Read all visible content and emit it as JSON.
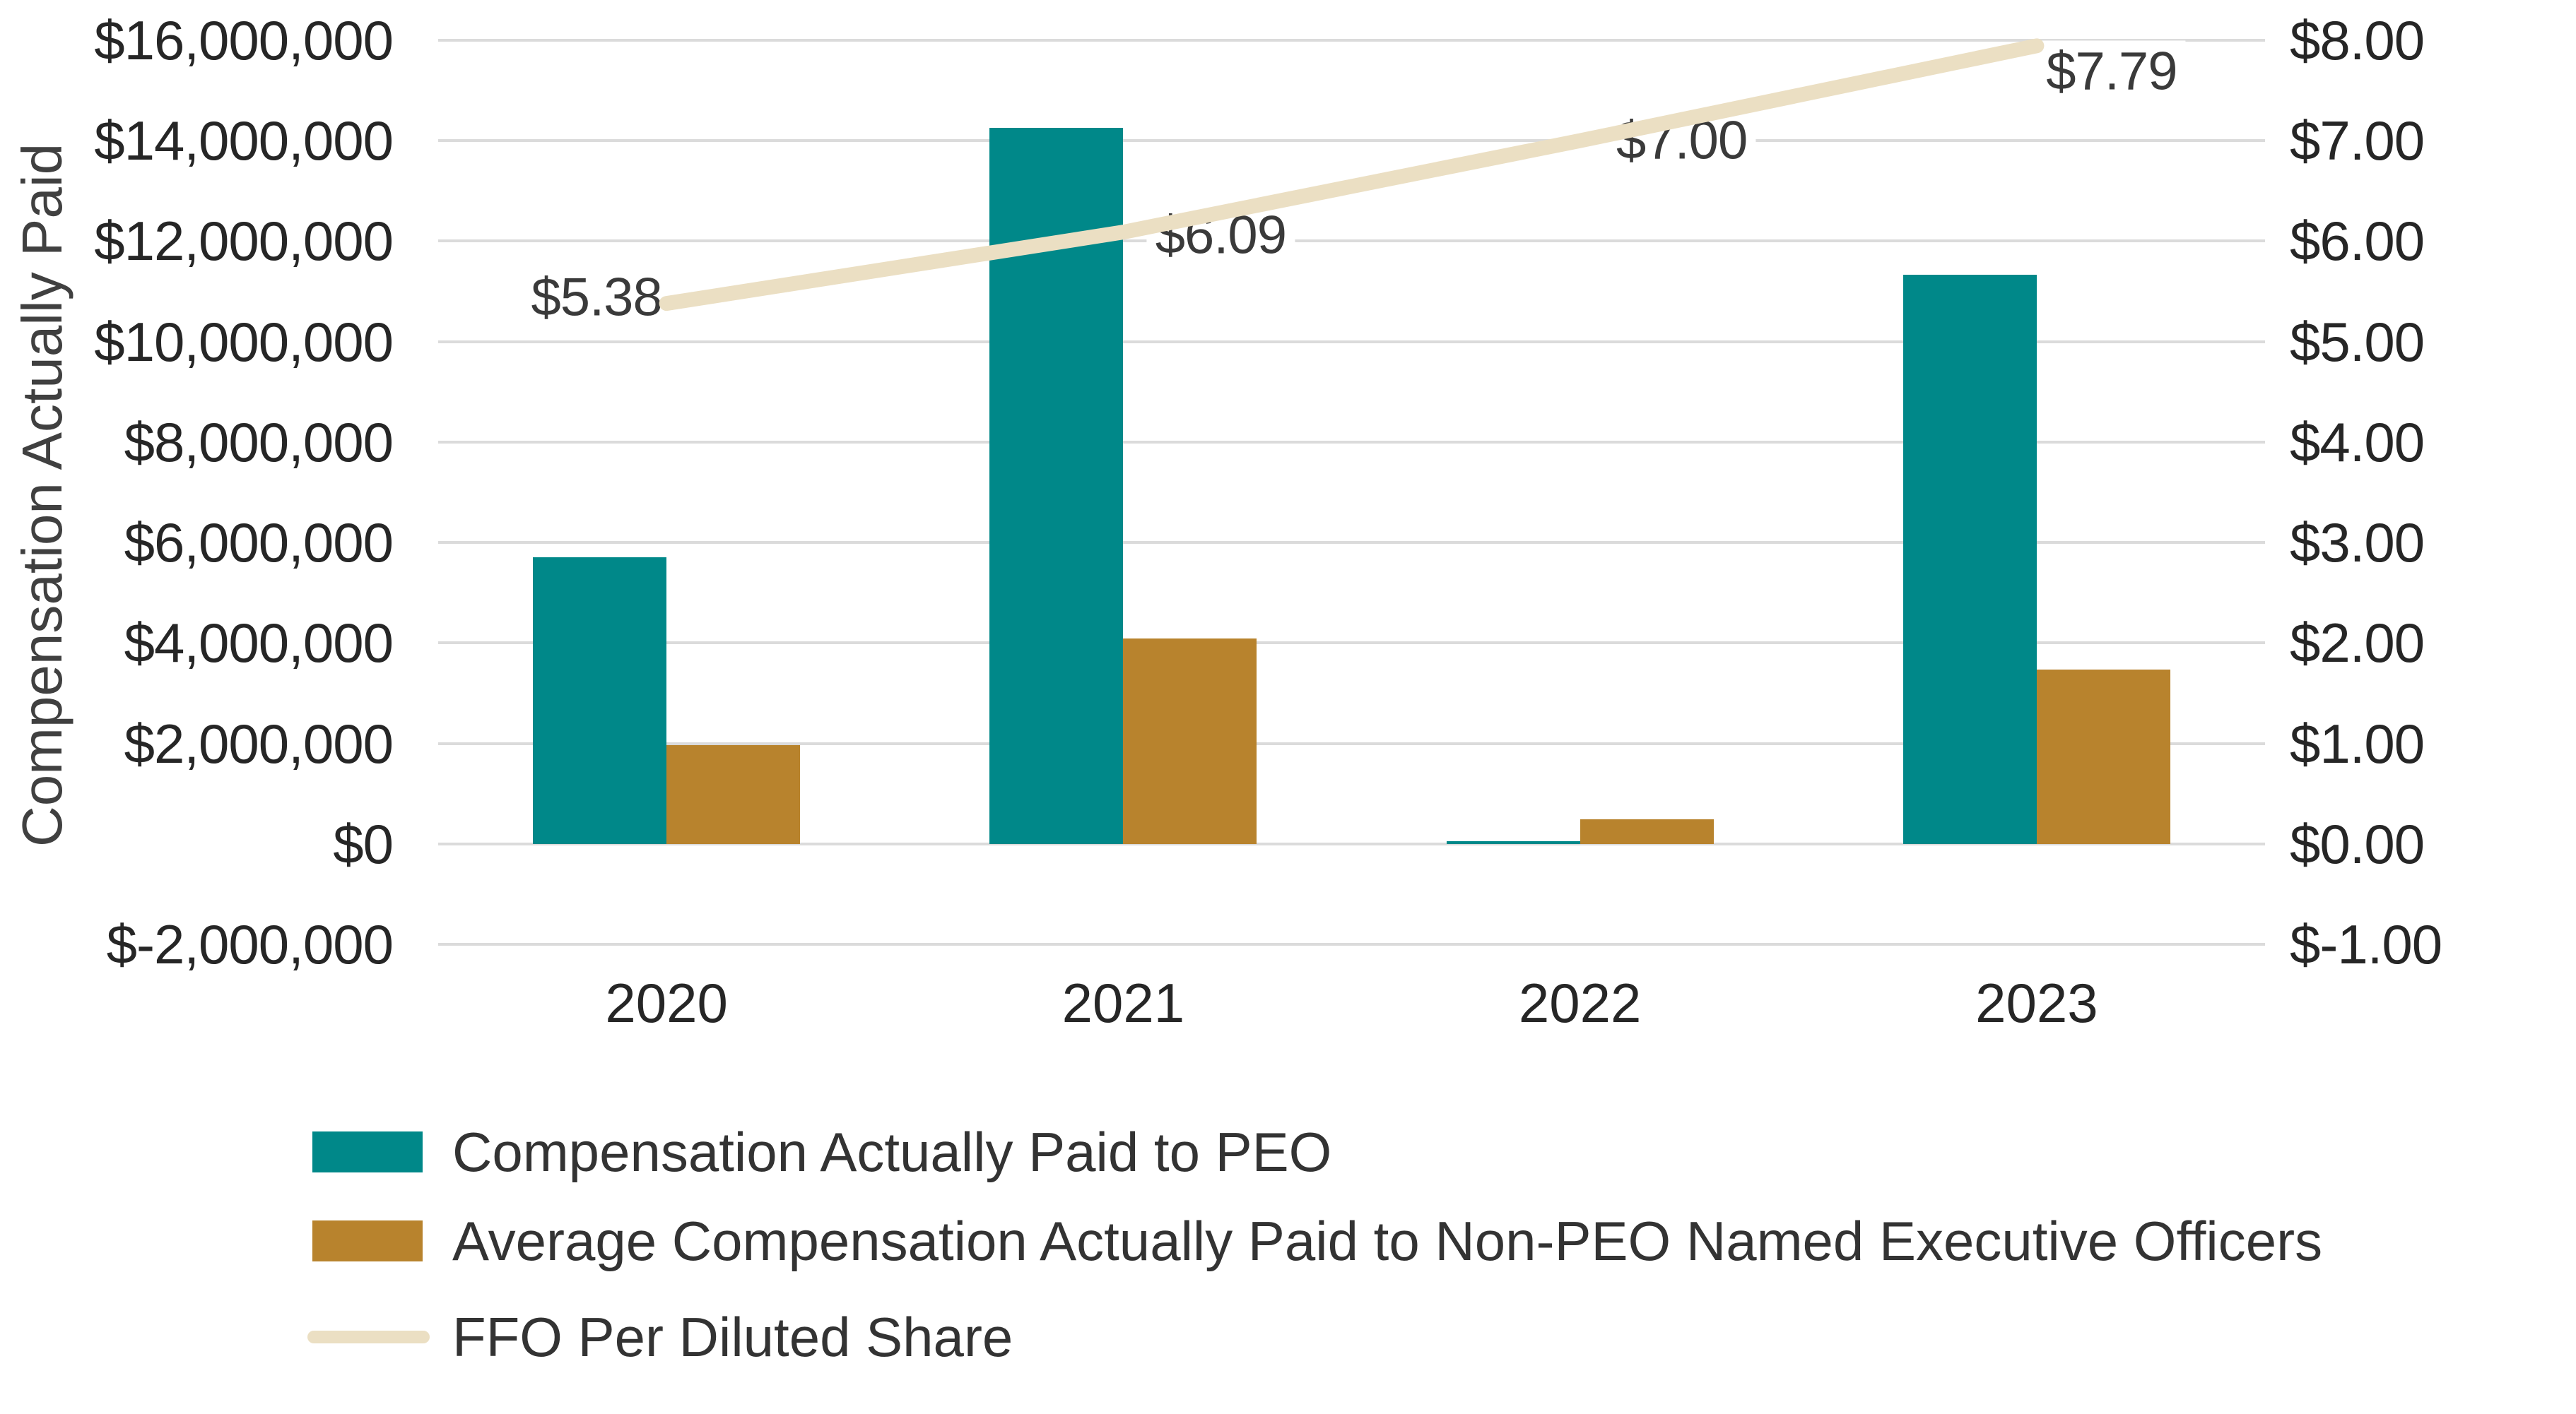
{
  "chart_data": {
    "type": "combo",
    "categories": [
      "2020",
      "2021",
      "2022",
      "2023"
    ],
    "series": [
      {
        "name": "Compensation Actually Paid to PEO",
        "type": "bar",
        "axis": "left",
        "color": "#008889",
        "values": [
          5710000,
          14260000,
          60000,
          11330000
        ]
      },
      {
        "name": "Average Compensation Actually Paid to Non-PEO Named Executive Officers",
        "type": "bar",
        "axis": "left",
        "color": "#B8832D",
        "values": [
          1970000,
          4090000,
          490000,
          3470000
        ]
      },
      {
        "name": "FFO Per Diluted Share",
        "type": "line",
        "axis": "right",
        "color": "#EBDFC3",
        "values": [
          5.38,
          6.09,
          7.0,
          7.79
        ],
        "point_labels": [
          "$5.38",
          "$6.09",
          "$7.00",
          "$7.79"
        ]
      }
    ],
    "left_axis": {
      "title": "Compensation Actually Paid",
      "min": -2000000,
      "max": 16000000,
      "step": 2000000,
      "tick_labels": [
        "$16,000,000",
        "$14,000,000",
        "$12,000,000",
        "$10,000,000",
        "$8,000,000",
        "$6,000,000",
        "$4,000,000",
        "$2,000,000",
        "$0",
        "$-2,000,000"
      ]
    },
    "right_axis": {
      "min": -1,
      "max": 8,
      "step": 1,
      "tick_labels": [
        "$8.00",
        "$7.00",
        "$6.00",
        "$5.00",
        "$4.00",
        "$3.00",
        "$2.00",
        "$1.00",
        "$0.00",
        "$-1.00"
      ]
    },
    "grid": true,
    "legend_position": "bottom-left",
    "colors": {
      "grid": "#DBDBDB",
      "tick_text": "#262626",
      "data_label_text": "#3A3A3A",
      "legend_text": "#333333",
      "axis_title_text": "#404040",
      "background": "#FFFFFF"
    }
  }
}
